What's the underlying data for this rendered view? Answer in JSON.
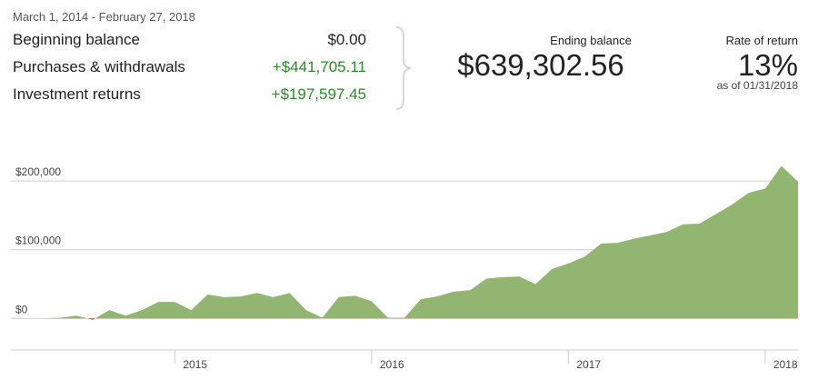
{
  "summary": {
    "date_range": "March 1, 2014 - February 27, 2018",
    "rows": [
      {
        "label": "Beginning balance",
        "value": "$0.00",
        "color": "#222222"
      },
      {
        "label": "Purchases & withdrawals",
        "value": "+$441,705.11",
        "color": "#2a8a2a"
      },
      {
        "label": "Investment returns",
        "value": "+$197,597.45",
        "color": "#2a8a2a"
      }
    ],
    "ending_balance_label": "Ending balance",
    "ending_balance": "$639,302.56",
    "rate_label": "Rate of return",
    "rate": "13%",
    "rate_date": "as of 01/31/2018"
  },
  "chart_data": {
    "type": "area",
    "color": "#93b572",
    "negative_color": "#e03030",
    "x": [
      2014.167,
      2014.25,
      2014.333,
      2014.417,
      2014.5,
      2014.583,
      2014.667,
      2014.75,
      2014.833,
      2014.917,
      2015.0,
      2015.083,
      2015.167,
      2015.25,
      2015.333,
      2015.417,
      2015.5,
      2015.583,
      2015.667,
      2015.75,
      2015.833,
      2015.917,
      2016.0,
      2016.083,
      2016.167,
      2016.25,
      2016.333,
      2016.417,
      2016.5,
      2016.583,
      2016.667,
      2016.75,
      2016.833,
      2016.917,
      2017.0,
      2017.083,
      2017.167,
      2017.25,
      2017.333,
      2017.417,
      2017.5,
      2017.583,
      2017.667,
      2017.75,
      2017.833,
      2017.917,
      2018.0,
      2018.083,
      2018.167
    ],
    "values": [
      0,
      0,
      0,
      1000,
      4000,
      -2000,
      12000,
      4000,
      12000,
      24000,
      24000,
      12000,
      35000,
      31000,
      32000,
      37000,
      31000,
      37000,
      12000,
      1000,
      31000,
      33000,
      25000,
      1000,
      1000,
      28000,
      32000,
      39000,
      41000,
      58000,
      60000,
      61000,
      50000,
      72000,
      80000,
      90000,
      109000,
      110000,
      116000,
      121000,
      126000,
      137000,
      138000,
      152000,
      166000,
      183000,
      189000,
      222000,
      199000
    ],
    "xlim": [
      2014.167,
      2018.167
    ],
    "xticks": [
      2015,
      2016,
      2017,
      2018
    ],
    "ylim": [
      -46000,
      232000
    ],
    "yticks": [
      {
        "value": 0,
        "label": "$0"
      },
      {
        "value": 100000,
        "label": "$100,000"
      },
      {
        "value": 200000,
        "label": "$200,000"
      }
    ],
    "grid": true
  }
}
